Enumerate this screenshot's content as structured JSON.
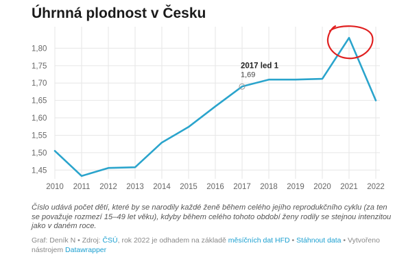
{
  "chart_data": {
    "type": "line",
    "title": "Úhrnná plodnost v Česku",
    "x": [
      "2010",
      "2011",
      "2012",
      "2013",
      "2014",
      "2015",
      "2016",
      "2017",
      "2018",
      "2019",
      "2020",
      "2021",
      "2022"
    ],
    "series": [
      {
        "values": [
          1.505,
          1.433,
          1.456,
          1.458,
          1.529,
          1.574,
          1.633,
          1.69,
          1.71,
          1.71,
          1.712,
          1.83,
          1.65
        ]
      }
    ],
    "yticks": [
      "1,45",
      "1,50",
      "1,55",
      "1,60",
      "1,65",
      "1,70",
      "1,75",
      "1,80"
    ],
    "ylim": [
      1.425,
      1.85
    ],
    "grid": true,
    "tooltip": {
      "title": "2017 led 1",
      "value": "1,69"
    },
    "annotation": "red circle around the 2021 peak",
    "colors": {
      "line": "#2aa4cc",
      "annotation": "#e02020",
      "link": "#1a9fd0"
    }
  },
  "note": "Číslo udává počet dětí, které by se narodily každé ženě během celého jejího reprodukčního cyklu (za ten se považuje rozmezí 15–49 let věku), kdyby během celého tohoto období ženy rodily se stejnou intenzitou jako v daném roce.",
  "source": {
    "prefix": "Graf: Deník N • Zdroj: ",
    "link_csu": "ČSÚ",
    "middle": ", rok 2022 je odhadem na základě ",
    "link_hfd": "měsíčních dat HFD",
    "sep": " • ",
    "link_download": "Stáhnout data",
    "suffix": " • Vytvořeno nástrojem ",
    "link_dw": "Datawrapper"
  }
}
